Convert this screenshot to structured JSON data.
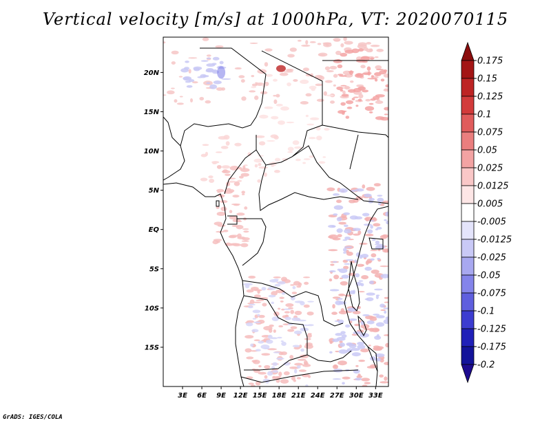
{
  "title": "Vertical velocity [m/s] at 1000hPa, VT: 2020070115",
  "footer": "GrADS: IGES/COLA",
  "chart_data": {
    "type": "heatmap",
    "title": "Vertical velocity [m/s] at 1000hPa, VT: 2020070115",
    "variable": "Vertical velocity",
    "units": "m/s",
    "level": "1000hPa",
    "valid_time": "2020070115",
    "lon_range": [
      0,
      35
    ],
    "lat_range": [
      -20,
      24.5
    ],
    "x_ticks": [
      "3E",
      "6E",
      "9E",
      "12E",
      "15E",
      "18E",
      "21E",
      "24E",
      "27E",
      "30E",
      "33E"
    ],
    "x_tick_values": [
      3,
      6,
      9,
      12,
      15,
      18,
      21,
      24,
      27,
      30,
      33
    ],
    "y_ticks": [
      "20N",
      "15N",
      "10N",
      "5N",
      "EQ",
      "5S",
      "10S",
      "15S"
    ],
    "y_tick_values": [
      20,
      15,
      10,
      5,
      0,
      -5,
      -10,
      -15
    ],
    "colorbar": {
      "labels": [
        "0.175",
        "0.15",
        "0.125",
        "0.1",
        "0.075",
        "0.05",
        "0.025",
        "0.0125",
        "0.005",
        "-0.005",
        "-0.0125",
        "-0.025",
        "-0.05",
        "-0.075",
        "-0.1",
        "-0.125",
        "-0.175",
        "-0.2"
      ],
      "colors": [
        "#8b0d0d",
        "#a31515",
        "#bd2424",
        "#d23b3b",
        "#e05c5c",
        "#ea7e7e",
        "#f3a3a3",
        "#f9c7c7",
        "#fde6e6",
        "#ffffff",
        "#e4e4fb",
        "#c9c9f6",
        "#a8a8f0",
        "#8484ea",
        "#5f5fde",
        "#3c3cd0",
        "#2020b8",
        "#13139a",
        "#1d0b8f"
      ],
      "extend": "both"
    }
  }
}
